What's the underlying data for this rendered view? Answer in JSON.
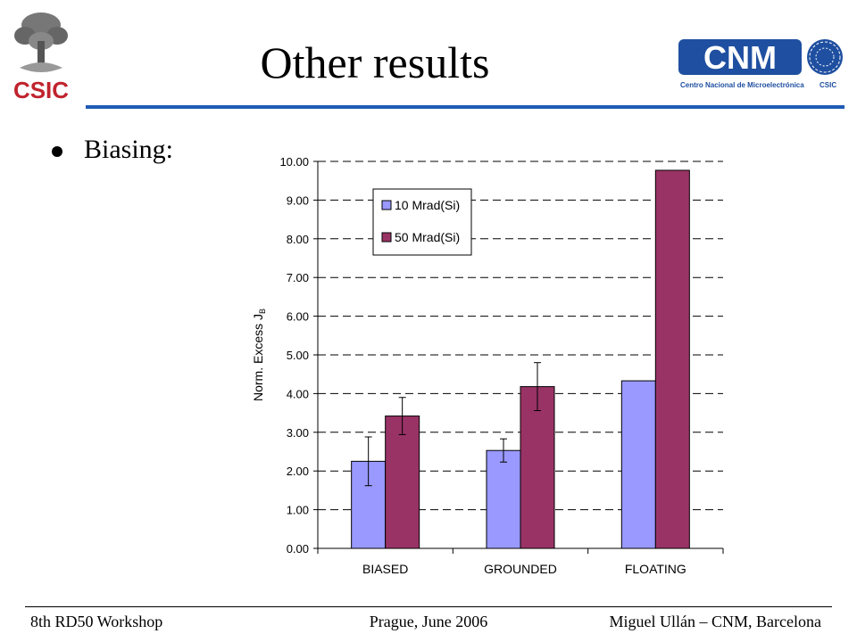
{
  "slide": {
    "title": "Other results",
    "bullet": "Biasing:",
    "logos": {
      "left_wordmark": "CSIC",
      "right_wordmark": "CNM",
      "right_subtitle": "Centro Nacional de Microelectrónica",
      "right_subtitle_suffix": "CSIC"
    }
  },
  "footer": {
    "left": "8th RD50 Workshop",
    "center": "Prague, June 2006",
    "right": "Miguel Ullán – CNM, Barcelona"
  },
  "colors": {
    "title_rule": "#1f5bb5",
    "series_1": "#9999ff",
    "series_2": "#993366",
    "cnm_blue": "#1f4fa0"
  },
  "chart_data": {
    "type": "bar",
    "categories": [
      "BIASED",
      "GROUNDED",
      "FLOATING"
    ],
    "series": [
      {
        "name": "10 Mrad(Si)",
        "values": [
          2.25,
          2.53,
          4.33
        ],
        "errors": [
          0.63,
          0.3,
          null
        ],
        "color": "#9999ff"
      },
      {
        "name": "50 Mrad(Si)",
        "values": [
          3.42,
          4.18,
          9.77
        ],
        "errors": [
          0.48,
          0.62,
          null
        ],
        "color": "#993366"
      }
    ],
    "ylabel": "Norm. Excess J",
    "ylabel_subscript": "B",
    "ylim": [
      0,
      10
    ],
    "yticks": [
      "0.00",
      "1.00",
      "2.00",
      "3.00",
      "4.00",
      "5.00",
      "6.00",
      "7.00",
      "8.00",
      "9.00",
      "10.00"
    ],
    "grid": "dashed horizontal",
    "legend_position": "top-left"
  }
}
